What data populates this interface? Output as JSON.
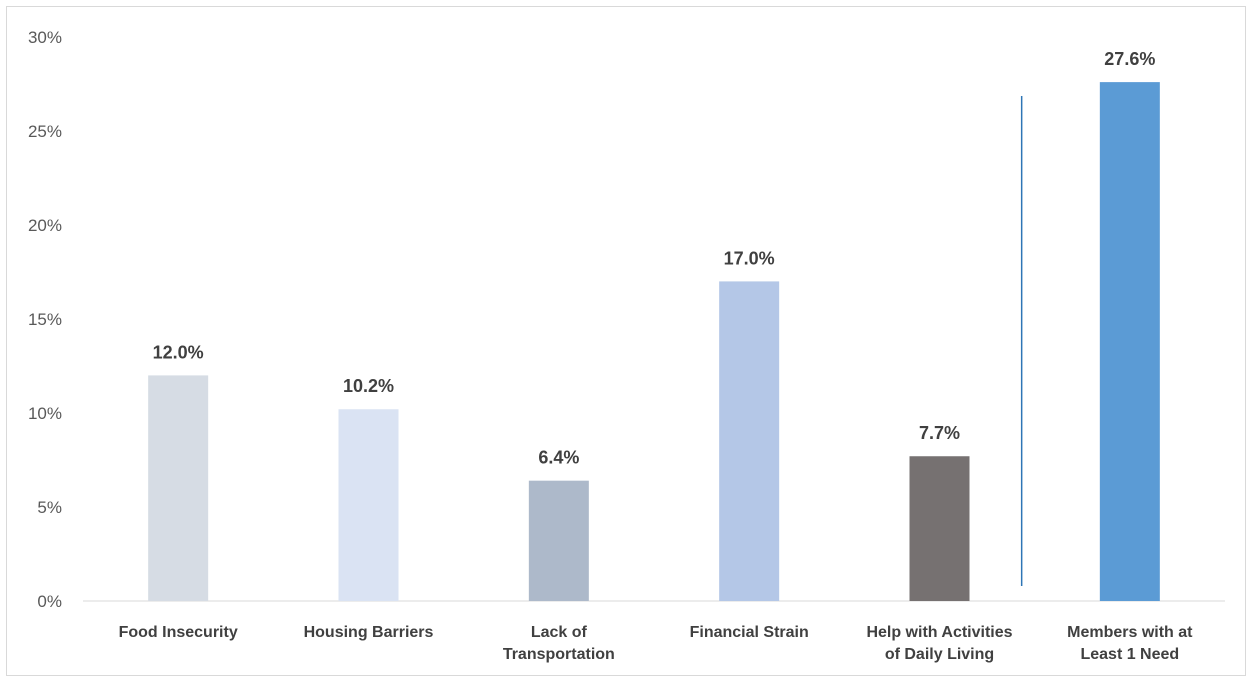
{
  "chart_data": {
    "type": "bar",
    "categories": [
      [
        "Food Insecurity"
      ],
      [
        "Housing Barriers"
      ],
      [
        "Lack of",
        "Transportation"
      ],
      [
        "Financial Strain"
      ],
      [
        "Help with Activities",
        "of Daily Living"
      ],
      [
        "Members with at",
        "Least 1 Need"
      ]
    ],
    "values": [
      12.0,
      10.2,
      6.4,
      17.0,
      7.7,
      27.6
    ],
    "data_labels": [
      "12.0%",
      "10.2%",
      "6.4%",
      "17.0%",
      "7.7%",
      "27.6%"
    ],
    "colors": [
      "#d6dce4",
      "#dae3f3",
      "#adb9ca",
      "#b4c7e7",
      "#767171",
      "#5b9bd5"
    ],
    "ylim": [
      0,
      30
    ],
    "yticks": [
      0,
      5,
      10,
      15,
      20,
      25,
      30
    ],
    "ytick_labels": [
      "0%",
      "5%",
      "10%",
      "15%",
      "20%",
      "25%",
      "30%"
    ],
    "grid": false,
    "separator_color": "#2e75b6",
    "title": "",
    "xlabel": "",
    "ylabel": ""
  }
}
